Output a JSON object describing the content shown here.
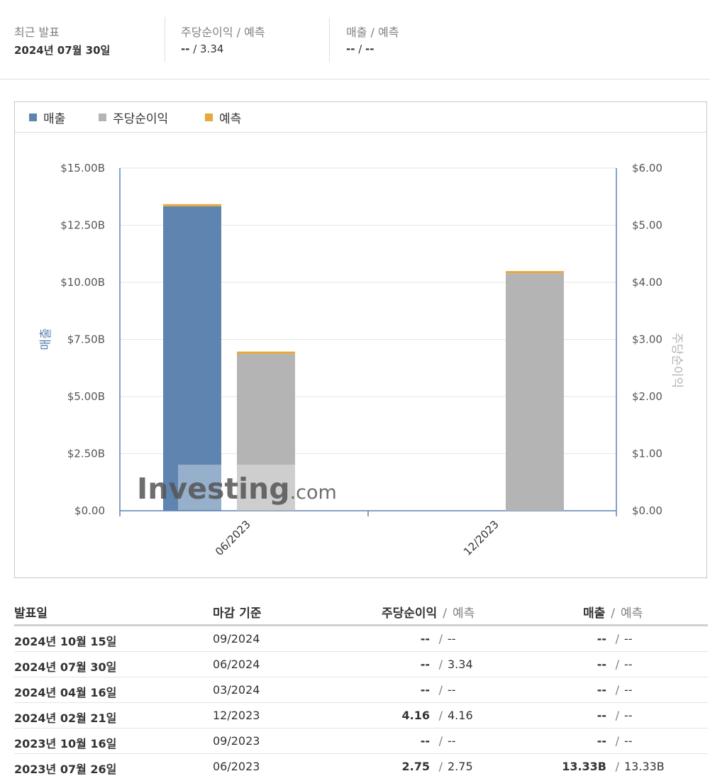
{
  "summary": {
    "latest": {
      "label": "최근 발표",
      "value": "2024년 07월 30일"
    },
    "eps": {
      "label": "주당순이익 / 예측",
      "actual": "--",
      "sep": " / ",
      "forecast": "3.34"
    },
    "revenue": {
      "label": "매출 / 예측",
      "actual": "--",
      "sep": " / ",
      "forecast": "--"
    }
  },
  "colors": {
    "revenue": "#5e84b0",
    "eps": "#b4b4b4",
    "forecast": "#e8a83a",
    "axis": "#5e84b0"
  },
  "legend": [
    {
      "label": "매출",
      "color": "#5e84b0"
    },
    {
      "label": "주당순이익",
      "color": "#b4b4b4"
    },
    {
      "label": "예측",
      "color": "#e8a83a"
    }
  ],
  "watermark": {
    "main": "Investing",
    "suffix": ".com"
  },
  "chart_data": {
    "type": "bar",
    "categories": [
      "06/2023",
      "12/2023"
    ],
    "series": [
      {
        "name": "매출",
        "axis": "left",
        "values": [
          13.33,
          null
        ],
        "color": "#5e84b0"
      },
      {
        "name": "주당순이익",
        "axis": "right",
        "values": [
          2.75,
          4.16
        ],
        "color": "#b4b4b4"
      }
    ],
    "forecast": {
      "name": "예측",
      "color": "#e8a83a",
      "revenue": [
        13.33,
        null
      ],
      "eps": [
        2.75,
        4.16
      ]
    },
    "ylabel_left": "매출",
    "ylabel_right": "주당순이익",
    "left_axis": {
      "ylim": [
        0,
        15
      ],
      "ticks": [
        "$0.00",
        "$2.50B",
        "$5.00B",
        "$7.50B",
        "$10.00B",
        "$12.50B",
        "$15.00B"
      ]
    },
    "right_axis": {
      "ylim": [
        0,
        6
      ],
      "ticks": [
        "$0.00",
        "$1.00",
        "$2.00",
        "$3.00",
        "$4.00",
        "$5.00",
        "$6.00"
      ]
    },
    "grid": true,
    "legend_position": "top-left"
  },
  "table": {
    "headers": {
      "date": "발표일",
      "period": "마감 기준",
      "eps": "주당순이익",
      "revenue": "매출",
      "forecast": "예측",
      "sep": "/"
    },
    "rows": [
      {
        "date": "2024년 10월 15일",
        "period": "09/2024",
        "eps": "--",
        "eps_fc": "--",
        "rev": "--",
        "rev_fc": "--"
      },
      {
        "date": "2024년 07월 30일",
        "period": "06/2024",
        "eps": "--",
        "eps_fc": "3.34",
        "rev": "--",
        "rev_fc": "--"
      },
      {
        "date": "2024년 04월 16일",
        "period": "03/2024",
        "eps": "--",
        "eps_fc": "--",
        "rev": "--",
        "rev_fc": "--"
      },
      {
        "date": "2024년 02월 21일",
        "period": "12/2023",
        "eps": "4.16",
        "eps_fc": "4.16",
        "rev": "--",
        "rev_fc": "--"
      },
      {
        "date": "2023년 10월 16일",
        "period": "09/2023",
        "eps": "--",
        "eps_fc": "--",
        "rev": "--",
        "rev_fc": "--"
      },
      {
        "date": "2023년 07월 26일",
        "period": "06/2023",
        "eps": "2.75",
        "eps_fc": "2.75",
        "rev": "13.33B",
        "rev_fc": "13.33B"
      }
    ]
  }
}
